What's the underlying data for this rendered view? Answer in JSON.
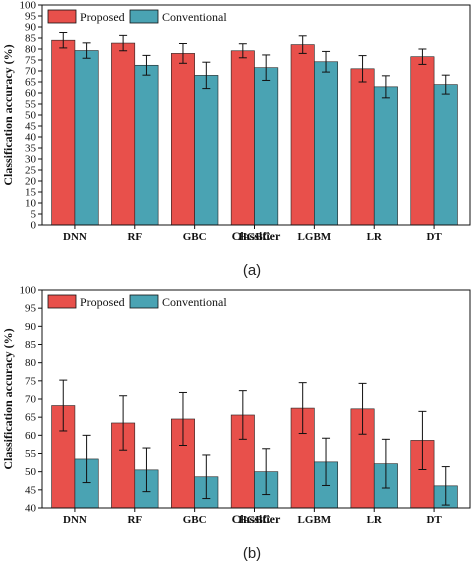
{
  "colors": {
    "proposed": "#e8504b",
    "conventional": "#4aa3b3",
    "axis": "#111111",
    "error_bar": "#111111"
  },
  "chart_data": [
    {
      "type": "bar",
      "caption": "(a)",
      "categories": [
        "DNN",
        "RF",
        "GBC",
        "HGBC",
        "LGBM",
        "LR",
        "DT"
      ],
      "xlabel": "Classifier",
      "ylabel": "Classification accuracy (%)",
      "ylim": [
        0,
        100
      ],
      "yticks": [
        0,
        5,
        10,
        15,
        20,
        25,
        30,
        35,
        40,
        45,
        50,
        55,
        60,
        65,
        70,
        75,
        80,
        85,
        90,
        95,
        100
      ],
      "legend": "top-left",
      "series": [
        {
          "name": "Proposed",
          "values": [
            84,
            82.7,
            78,
            79.2,
            82,
            71,
            76.5
          ],
          "errors": [
            3.5,
            3.5,
            4.5,
            3.2,
            4,
            6,
            3.5
          ]
        },
        {
          "name": "Conventional",
          "values": [
            79.3,
            72.6,
            68,
            71.5,
            74.2,
            62.8,
            63.8
          ],
          "errors": [
            3.5,
            4.5,
            6,
            5.8,
            4.7,
            5,
            4.3
          ]
        }
      ]
    },
    {
      "type": "bar",
      "caption": "(b)",
      "categories": [
        "DNN",
        "RF",
        "GBC",
        "HGBC",
        "LGBM",
        "LR",
        "DT"
      ],
      "xlabel": "Classifier",
      "ylabel": "Classification accuracy (%)",
      "ylim": [
        40,
        100
      ],
      "yticks": [
        40,
        45,
        50,
        55,
        60,
        65,
        70,
        75,
        80,
        85,
        90,
        95,
        100
      ],
      "legend": "top-left",
      "series": [
        {
          "name": "Proposed",
          "values": [
            68.2,
            63.4,
            64.5,
            65.6,
            67.5,
            67.3,
            58.6
          ],
          "errors": [
            7,
            7.5,
            7.3,
            6.7,
            7,
            7,
            8
          ]
        },
        {
          "name": "Conventional",
          "values": [
            53.5,
            50.5,
            48.6,
            50,
            52.7,
            52.2,
            46.1
          ],
          "errors": [
            6.5,
            6,
            6,
            6.3,
            6.5,
            6.7,
            5.3
          ]
        }
      ]
    }
  ]
}
